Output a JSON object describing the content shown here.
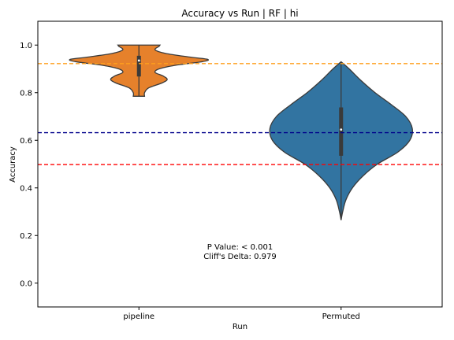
{
  "chart_data": {
    "type": "violin",
    "title": "Accuracy vs Run | RF | hi",
    "xlabel": "Run",
    "ylabel": "Accuracy",
    "categories": [
      "pipeline",
      "Permuted"
    ],
    "ylim": [
      -0.1,
      1.1
    ],
    "yticks": [
      0.0,
      0.2,
      0.4,
      0.6,
      0.8,
      1.0
    ],
    "ytick_labels": [
      "0.0",
      "0.2",
      "0.4",
      "0.6",
      "0.8",
      "1.0"
    ],
    "grid": false,
    "violins": [
      {
        "category": "pipeline",
        "color": "#e6812b",
        "min": 0.785,
        "max": 1.0,
        "q1": 0.868,
        "median": 0.935,
        "q3": 0.955,
        "density": [
          [
            0.785,
            0.07
          ],
          [
            0.8,
            0.07
          ],
          [
            0.82,
            0.12
          ],
          [
            0.84,
            0.28
          ],
          [
            0.855,
            0.35
          ],
          [
            0.87,
            0.3
          ],
          [
            0.885,
            0.2
          ],
          [
            0.9,
            0.25
          ],
          [
            0.915,
            0.45
          ],
          [
            0.93,
            0.78
          ],
          [
            0.94,
            0.85
          ],
          [
            0.95,
            0.62
          ],
          [
            0.965,
            0.33
          ],
          [
            0.98,
            0.2
          ],
          [
            0.995,
            0.25
          ],
          [
            1.0,
            0.26
          ]
        ]
      },
      {
        "category": "Permuted",
        "color": "#3274a1",
        "min": 0.265,
        "max": 0.93,
        "q1": 0.535,
        "median": 0.645,
        "q3": 0.738,
        "density": [
          [
            0.265,
            0.0
          ],
          [
            0.3,
            0.02
          ],
          [
            0.35,
            0.06
          ],
          [
            0.4,
            0.14
          ],
          [
            0.45,
            0.27
          ],
          [
            0.5,
            0.45
          ],
          [
            0.55,
            0.7
          ],
          [
            0.6,
            0.85
          ],
          [
            0.65,
            0.88
          ],
          [
            0.7,
            0.8
          ],
          [
            0.75,
            0.62
          ],
          [
            0.8,
            0.42
          ],
          [
            0.85,
            0.25
          ],
          [
            0.9,
            0.1
          ],
          [
            0.93,
            0.0
          ]
        ]
      }
    ],
    "reference_lines": [
      {
        "y": 0.922,
        "color": "#ff9f1c"
      },
      {
        "y": 0.632,
        "color": "#00008b"
      },
      {
        "y": 0.498,
        "color": "#ff0000"
      }
    ],
    "annotation": {
      "line1": "P Value: < 0.001",
      "line2": "Cliff's Delta: 0.979",
      "x": 0.5,
      "y": 0.135
    }
  }
}
